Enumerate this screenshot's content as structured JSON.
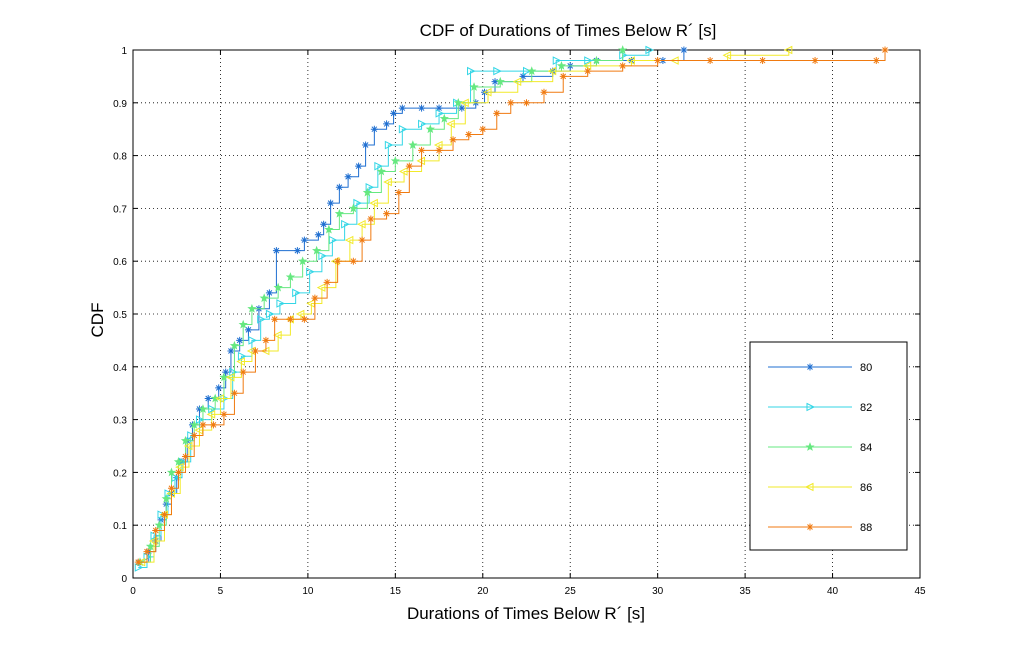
{
  "chart_data": {
    "type": "line",
    "title": "CDF of Durations of Times Below R´ [s]",
    "xlabel": "Durations of Times Below R´ [s]",
    "ylabel": "CDF",
    "xlim": [
      0,
      45
    ],
    "ylim": [
      0,
      1
    ],
    "xticks": [
      "0",
      "5",
      "10",
      "15",
      "20",
      "25",
      "30",
      "35",
      "40",
      "45"
    ],
    "yticks": [
      "0",
      "0.1",
      "0.2",
      "0.3",
      "0.4",
      "0.5",
      "0.6",
      "0.7",
      "0.8",
      "0.9",
      "1"
    ],
    "grid": true,
    "legend_position": "lower-right",
    "series": [
      {
        "name": "80",
        "color": "#1f6fd1",
        "marker": "asterisk",
        "points": [
          [
            0.4,
            0.03
          ],
          [
            0.9,
            0.05
          ],
          [
            1.3,
            0.07
          ],
          [
            1.6,
            0.11
          ],
          [
            1.9,
            0.14
          ],
          [
            2.2,
            0.16
          ],
          [
            2.5,
            0.19
          ],
          [
            2.8,
            0.22
          ],
          [
            3.1,
            0.26
          ],
          [
            3.4,
            0.29
          ],
          [
            3.8,
            0.32
          ],
          [
            4.3,
            0.34
          ],
          [
            4.9,
            0.36
          ],
          [
            5.3,
            0.39
          ],
          [
            5.6,
            0.43
          ],
          [
            6.1,
            0.45
          ],
          [
            6.6,
            0.47
          ],
          [
            7.2,
            0.51
          ],
          [
            7.8,
            0.54
          ],
          [
            8.2,
            0.62
          ],
          [
            9.4,
            0.62
          ],
          [
            9.8,
            0.64
          ],
          [
            10.6,
            0.65
          ],
          [
            10.9,
            0.67
          ],
          [
            11.3,
            0.71
          ],
          [
            11.8,
            0.74
          ],
          [
            12.3,
            0.76
          ],
          [
            12.9,
            0.78
          ],
          [
            13.3,
            0.82
          ],
          [
            13.8,
            0.85
          ],
          [
            14.5,
            0.86
          ],
          [
            14.9,
            0.88
          ],
          [
            15.4,
            0.89
          ],
          [
            16.5,
            0.89
          ],
          [
            17.5,
            0.89
          ],
          [
            18.8,
            0.89
          ],
          [
            19.6,
            0.9
          ],
          [
            20.1,
            0.92
          ],
          [
            20.7,
            0.94
          ],
          [
            22.3,
            0.95
          ],
          [
            24.0,
            0.96
          ],
          [
            25.0,
            0.97
          ],
          [
            26.5,
            0.98
          ],
          [
            28.5,
            0.98
          ],
          [
            30.3,
            0.98
          ],
          [
            31.5,
            1.0
          ]
        ]
      },
      {
        "name": "82",
        "color": "#33d6e6",
        "marker": "triangle-right",
        "points": [
          [
            0.3,
            0.02
          ],
          [
            0.8,
            0.04
          ],
          [
            1.2,
            0.08
          ],
          [
            1.6,
            0.12
          ],
          [
            2.0,
            0.16
          ],
          [
            2.4,
            0.19
          ],
          [
            2.8,
            0.22
          ],
          [
            3.3,
            0.27
          ],
          [
            3.8,
            0.3
          ],
          [
            4.5,
            0.32
          ],
          [
            5.2,
            0.34
          ],
          [
            5.7,
            0.39
          ],
          [
            6.2,
            0.42
          ],
          [
            6.8,
            0.45
          ],
          [
            7.3,
            0.49
          ],
          [
            7.8,
            0.5
          ],
          [
            8.4,
            0.52
          ],
          [
            9.3,
            0.54
          ],
          [
            10.1,
            0.58
          ],
          [
            10.8,
            0.61
          ],
          [
            11.4,
            0.64
          ],
          [
            12.1,
            0.67
          ],
          [
            12.8,
            0.71
          ],
          [
            13.5,
            0.74
          ],
          [
            14.0,
            0.78
          ],
          [
            14.6,
            0.82
          ],
          [
            15.4,
            0.85
          ],
          [
            16.5,
            0.86
          ],
          [
            17.5,
            0.88
          ],
          [
            18.5,
            0.9
          ],
          [
            19.3,
            0.96
          ],
          [
            20.8,
            0.96
          ],
          [
            22.5,
            0.96
          ],
          [
            24.2,
            0.98
          ],
          [
            26.0,
            0.98
          ],
          [
            28.0,
            0.99
          ],
          [
            29.5,
            1.0
          ]
        ]
      },
      {
        "name": "84",
        "color": "#66e880",
        "marker": "star",
        "points": [
          [
            0.4,
            0.03
          ],
          [
            1.0,
            0.06
          ],
          [
            1.5,
            0.1
          ],
          [
            1.9,
            0.15
          ],
          [
            2.2,
            0.2
          ],
          [
            2.6,
            0.22
          ],
          [
            3.0,
            0.26
          ],
          [
            3.5,
            0.29
          ],
          [
            4.0,
            0.32
          ],
          [
            4.7,
            0.34
          ],
          [
            5.2,
            0.38
          ],
          [
            5.8,
            0.44
          ],
          [
            6.3,
            0.48
          ],
          [
            6.8,
            0.51
          ],
          [
            7.5,
            0.53
          ],
          [
            8.3,
            0.55
          ],
          [
            9.0,
            0.57
          ],
          [
            9.7,
            0.6
          ],
          [
            10.5,
            0.62
          ],
          [
            11.2,
            0.66
          ],
          [
            11.8,
            0.69
          ],
          [
            12.6,
            0.7
          ],
          [
            13.4,
            0.73
          ],
          [
            14.2,
            0.77
          ],
          [
            15.0,
            0.79
          ],
          [
            16.0,
            0.82
          ],
          [
            17.0,
            0.85
          ],
          [
            17.8,
            0.87
          ],
          [
            18.6,
            0.9
          ],
          [
            19.5,
            0.93
          ],
          [
            21.0,
            0.94
          ],
          [
            22.8,
            0.96
          ],
          [
            24.5,
            0.97
          ],
          [
            26.5,
            0.98
          ],
          [
            28.0,
            1.0
          ]
        ]
      },
      {
        "name": "86",
        "color": "#f2ea2a",
        "marker": "triangle-left",
        "points": [
          [
            0.5,
            0.03
          ],
          [
            1.2,
            0.07
          ],
          [
            1.8,
            0.12
          ],
          [
            2.2,
            0.16
          ],
          [
            2.7,
            0.21
          ],
          [
            3.2,
            0.25
          ],
          [
            3.8,
            0.28
          ],
          [
            4.5,
            0.31
          ],
          [
            5.0,
            0.34
          ],
          [
            5.6,
            0.38
          ],
          [
            6.2,
            0.41
          ],
          [
            6.8,
            0.43
          ],
          [
            7.6,
            0.43
          ],
          [
            8.3,
            0.46
          ],
          [
            9.0,
            0.49
          ],
          [
            9.6,
            0.5
          ],
          [
            10.2,
            0.52
          ],
          [
            10.8,
            0.55
          ],
          [
            11.6,
            0.6
          ],
          [
            12.4,
            0.64
          ],
          [
            13.1,
            0.67
          ],
          [
            13.8,
            0.71
          ],
          [
            14.6,
            0.75
          ],
          [
            15.5,
            0.77
          ],
          [
            16.5,
            0.79
          ],
          [
            17.5,
            0.82
          ],
          [
            18.2,
            0.86
          ],
          [
            19.0,
            0.9
          ],
          [
            20.3,
            0.92
          ],
          [
            22.0,
            0.94
          ],
          [
            24.0,
            0.96
          ],
          [
            26.0,
            0.97
          ],
          [
            28.5,
            0.98
          ],
          [
            31.0,
            0.98
          ],
          [
            34.0,
            0.99
          ],
          [
            37.5,
            1.0
          ]
        ]
      },
      {
        "name": "88",
        "color": "#f07a10",
        "marker": "asterisk",
        "points": [
          [
            0.3,
            0.03
          ],
          [
            0.8,
            0.05
          ],
          [
            1.3,
            0.09
          ],
          [
            1.8,
            0.12
          ],
          [
            2.2,
            0.17
          ],
          [
            2.6,
            0.2
          ],
          [
            3.0,
            0.23
          ],
          [
            3.5,
            0.27
          ],
          [
            4.0,
            0.29
          ],
          [
            4.6,
            0.29
          ],
          [
            5.2,
            0.31
          ],
          [
            5.8,
            0.35
          ],
          [
            6.3,
            0.39
          ],
          [
            7.0,
            0.43
          ],
          [
            7.6,
            0.45
          ],
          [
            8.1,
            0.49
          ],
          [
            9.0,
            0.49
          ],
          [
            9.8,
            0.49
          ],
          [
            10.4,
            0.53
          ],
          [
            11.1,
            0.56
          ],
          [
            11.7,
            0.6
          ],
          [
            12.6,
            0.6
          ],
          [
            13.1,
            0.64
          ],
          [
            13.6,
            0.68
          ],
          [
            14.5,
            0.69
          ],
          [
            15.2,
            0.73
          ],
          [
            15.8,
            0.78
          ],
          [
            16.5,
            0.81
          ],
          [
            17.5,
            0.81
          ],
          [
            18.3,
            0.83
          ],
          [
            19.2,
            0.84
          ],
          [
            20.0,
            0.85
          ],
          [
            20.8,
            0.88
          ],
          [
            21.6,
            0.9
          ],
          [
            22.5,
            0.9
          ],
          [
            23.5,
            0.92
          ],
          [
            24.6,
            0.95
          ],
          [
            26.0,
            0.96
          ],
          [
            28.0,
            0.97
          ],
          [
            30.0,
            0.98
          ],
          [
            33.0,
            0.98
          ],
          [
            36.0,
            0.98
          ],
          [
            39.0,
            0.98
          ],
          [
            42.5,
            0.98
          ],
          [
            43.0,
            1.0
          ]
        ]
      }
    ]
  }
}
